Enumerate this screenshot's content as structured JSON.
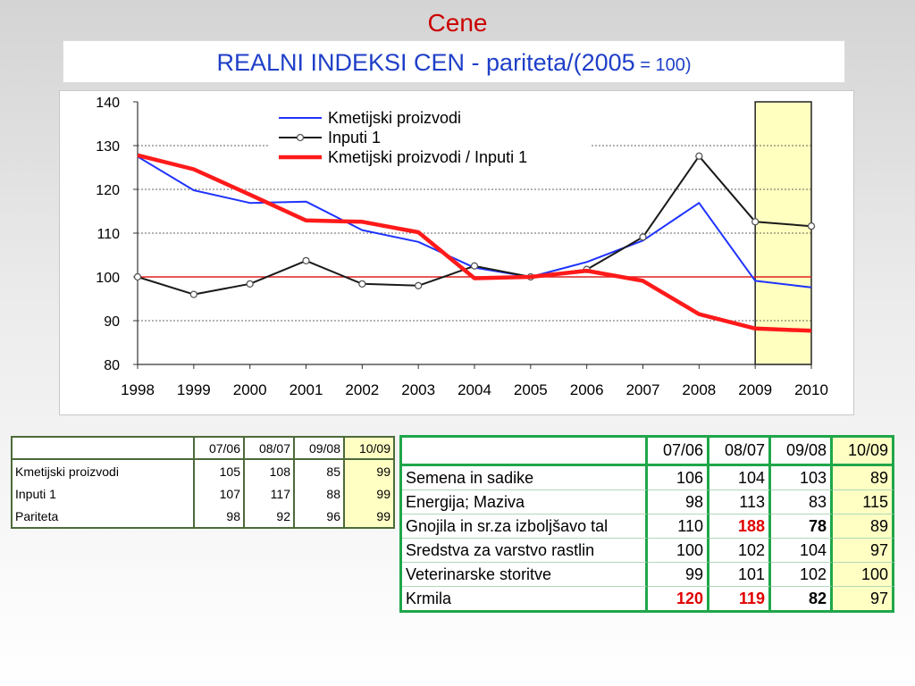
{
  "header": {
    "title": "Cene",
    "subtitle_main": "REALNI INDEKSI CEN - pariteta/(2005",
    "subtitle_tail": " = 100)"
  },
  "chart_data": {
    "type": "line",
    "x": [
      "1998",
      "1999",
      "2000",
      "2001",
      "2002",
      "2003",
      "2004",
      "2005",
      "2006",
      "2007",
      "2008",
      "2009",
      "2010"
    ],
    "ylim": [
      80,
      140
    ],
    "yticks": [
      80,
      90,
      100,
      110,
      120,
      130,
      140
    ],
    "reference_line": 100,
    "highlight_range": [
      "2009",
      "2010"
    ],
    "legend_position": "top-center",
    "series": [
      {
        "name": "Kmetijski proizvodi",
        "color": "#1f33ff",
        "marker": false,
        "values": [
          127.5,
          119.8,
          116.9,
          117.2,
          110.7,
          108.0,
          102.1,
          100.0,
          103.4,
          108.3,
          116.9,
          99.1,
          97.6
        ]
      },
      {
        "name": "Inputi 1",
        "color": "#1a1a1a",
        "marker": true,
        "values": [
          100.0,
          96.0,
          98.4,
          103.7,
          98.4,
          98.0,
          102.5,
          100.0,
          101.7,
          109.1,
          127.6,
          112.6,
          111.6
        ]
      },
      {
        "name": "Kmetijski proizvodi / Inputi 1",
        "color": "#ff1a1a",
        "marker": false,
        "values": [
          127.8,
          124.6,
          118.8,
          112.9,
          112.6,
          110.2,
          99.7,
          100.0,
          101.4,
          99.1,
          91.5,
          88.2,
          87.7
        ]
      }
    ]
  },
  "table_left": {
    "headers": [
      "",
      "07/06",
      "08/07",
      "09/08",
      "10/09"
    ],
    "rows": [
      {
        "label": "Kmetijski proizvodi",
        "values": [
          "105",
          "108",
          "85",
          "99"
        ]
      },
      {
        "label": "Inputi 1",
        "values": [
          "107",
          "117",
          "88",
          "99"
        ]
      },
      {
        "label": "Pariteta",
        "values": [
          "98",
          "92",
          "96",
          "99"
        ]
      }
    ]
  },
  "table_right": {
    "headers": [
      "",
      "07/06",
      "08/07",
      "09/08",
      "10/09"
    ],
    "rows": [
      {
        "label": "Semena in sadike",
        "values": [
          "106",
          "104",
          "103",
          "89"
        ]
      },
      {
        "label": "Energija; Maziva",
        "values": [
          "98",
          "113",
          "83",
          "115"
        ]
      },
      {
        "label": "Gnojila in sr.za izboljšavo tal",
        "values": [
          "110",
          "188",
          "78",
          "89"
        ]
      },
      {
        "label": "Sredstva za varstvo rastlin",
        "values": [
          "100",
          "102",
          "104",
          "97"
        ]
      },
      {
        "label": "Veterinarske storitve",
        "values": [
          "99",
          "101",
          "102",
          "100"
        ]
      },
      {
        "label": "Krmila",
        "values": [
          "120",
          "119",
          "82",
          "97"
        ]
      }
    ],
    "emphasis_colors": {
      "red": "#e00000"
    }
  }
}
